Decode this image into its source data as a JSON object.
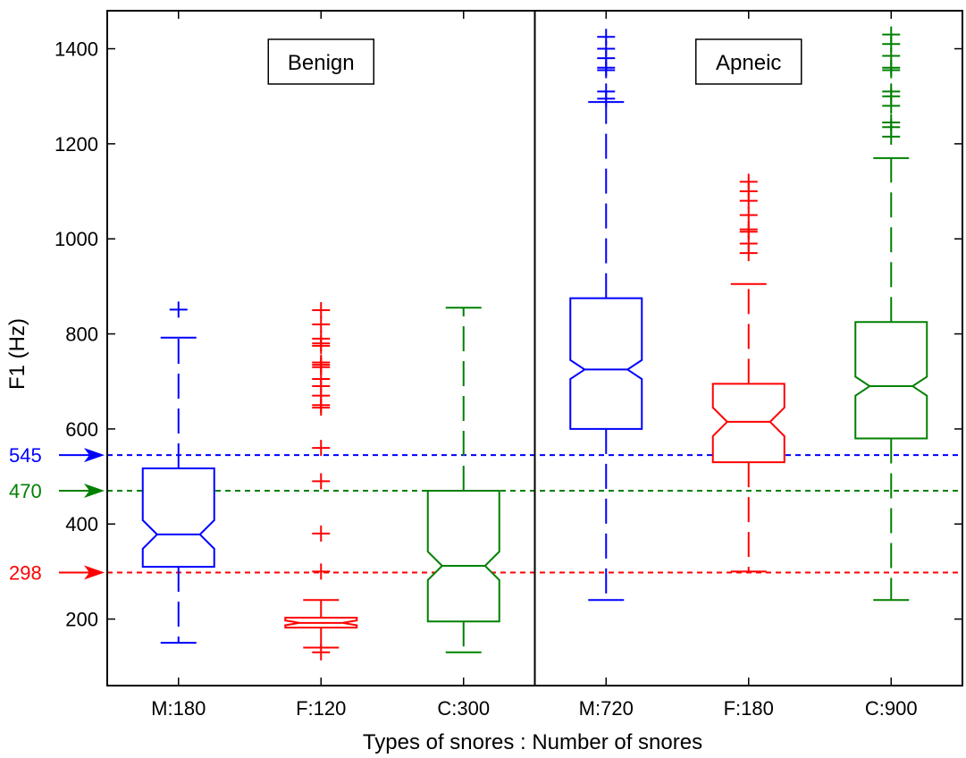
{
  "chart_data": {
    "type": "boxplot",
    "xlabel": "Types of snores : Number of snores",
    "ylabel": "F1 (Hz)",
    "ylim": [
      60,
      1480
    ],
    "yticks": [
      200,
      400,
      600,
      800,
      1000,
      1200,
      1400
    ],
    "notched": true,
    "groups": [
      {
        "label": "Benign",
        "boxes": [
          0,
          1,
          2
        ]
      },
      {
        "label": "Apneic",
        "boxes": [
          3,
          4,
          5
        ]
      }
    ],
    "categories": [
      "M:180",
      "F:120",
      "C:300",
      "M:720",
      "F:180",
      "C:900"
    ],
    "boxes": [
      {
        "category": "M:180",
        "color": "#0000ff",
        "whisker_low": 150,
        "q1": 310,
        "median": 378,
        "q3": 517,
        "whisker_high": 792,
        "notch_low": 348,
        "notch_high": 408,
        "outliers": [
          851
        ]
      },
      {
        "category": "F:120",
        "color": "#ff0000",
        "whisker_low": 140,
        "q1": 182,
        "median": 192,
        "q3": 203,
        "whisker_high": 240,
        "notch_low": 187,
        "notch_high": 197,
        "outliers": [
          130,
          300,
          380,
          490,
          560,
          645,
          650,
          670,
          690,
          705,
          730,
          735,
          740,
          775,
          780,
          790,
          820,
          850
        ]
      },
      {
        "category": "C:300",
        "color": "#008000",
        "whisker_low": 130,
        "q1": 195,
        "median": 312,
        "q3": 470,
        "whisker_high": 855,
        "notch_low": 282,
        "notch_high": 342,
        "outliers": []
      },
      {
        "category": "M:720",
        "color": "#0000ff",
        "whisker_low": 240,
        "q1": 600,
        "median": 725,
        "q3": 875,
        "whisker_high": 1288,
        "notch_low": 705,
        "notch_high": 745,
        "outliers": [
          1295,
          1310,
          1355,
          1360,
          1380,
          1400,
          1425
        ]
      },
      {
        "category": "F:180",
        "color": "#ff0000",
        "whisker_low": 300,
        "q1": 530,
        "median": 615,
        "q3": 695,
        "whisker_high": 905,
        "notch_low": 585,
        "notch_high": 645,
        "outliers": [
          970,
          990,
          1015,
          1020,
          1050,
          1080,
          1100,
          1120
        ]
      },
      {
        "category": "C:900",
        "color": "#008000",
        "whisker_low": 240,
        "q1": 580,
        "median": 690,
        "q3": 825,
        "whisker_high": 1170,
        "notch_low": 670,
        "notch_high": 710,
        "outliers": [
          1215,
          1235,
          1245,
          1280,
          1300,
          1310,
          1355,
          1360,
          1385,
          1410,
          1430
        ]
      }
    ],
    "reference_lines": [
      {
        "label": "545",
        "value": 545,
        "color": "#0000ff"
      },
      {
        "label": "470",
        "value": 470,
        "color": "#008000"
      },
      {
        "label": "298",
        "value": 298,
        "color": "#ff0000"
      }
    ],
    "grid": false,
    "legend": "none"
  }
}
